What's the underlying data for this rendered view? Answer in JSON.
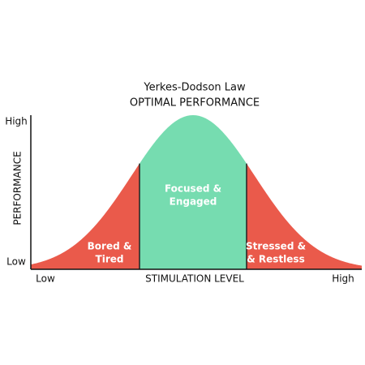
{
  "title": "Yerkes-Dodson Law",
  "subtitle": "OPTIMAL PERFORMANCE",
  "y_axis": {
    "label": "PERFORMANCE",
    "high": "High",
    "low": "Low"
  },
  "x_axis": {
    "label": "STIMULATION LEVEL",
    "low": "Low",
    "high": "High"
  },
  "zones": [
    {
      "lines": [
        "Bored &",
        "Tired"
      ]
    },
    {
      "lines": [
        "Focused &",
        "Engaged"
      ]
    },
    {
      "lines": [
        "Stressed &",
        "& Restless"
      ]
    }
  ]
}
